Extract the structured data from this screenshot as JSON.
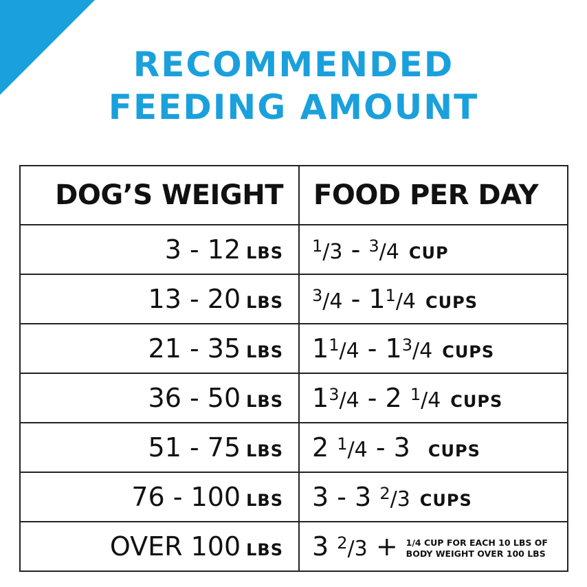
{
  "accent_color": "#1aa0dc",
  "title": {
    "line1": "RECOMMENDED",
    "line2": "FEEDING AMOUNT"
  },
  "headers": {
    "weight": "DOG’S WEIGHT",
    "food": "FOOD PER DAY"
  },
  "rows": [
    {
      "weight": "3 - 12",
      "weight_unit": "LBS",
      "food": [
        {
          "n": "1",
          "d": "3"
        },
        {
          "t": " - "
        },
        {
          "n": "3",
          "d": "4"
        }
      ],
      "food_unit": "CUP"
    },
    {
      "weight": "13 - 20",
      "weight_unit": "LBS",
      "food": [
        {
          "n": "3",
          "d": "4"
        },
        {
          "t": " - 1"
        },
        {
          "n": "1",
          "d": "4"
        }
      ],
      "food_unit": "CUPS"
    },
    {
      "weight": "21 - 35",
      "weight_unit": "LBS",
      "food": [
        {
          "t": "1"
        },
        {
          "n": "1",
          "d": "4"
        },
        {
          "t": " - 1"
        },
        {
          "n": "3",
          "d": "4"
        }
      ],
      "food_unit": "CUPS"
    },
    {
      "weight": "36 - 50",
      "weight_unit": "LBS",
      "food": [
        {
          "t": "1"
        },
        {
          "n": "3",
          "d": "4"
        },
        {
          "t": " - 2 "
        },
        {
          "n": "1",
          "d": "4"
        }
      ],
      "food_unit": "CUPS"
    },
    {
      "weight": "51 - 75",
      "weight_unit": "LBS",
      "food": [
        {
          "t": "2 "
        },
        {
          "n": "1",
          "d": "4"
        },
        {
          "t": " - 3 "
        }
      ],
      "food_unit": "CUPS"
    },
    {
      "weight": "76 - 100",
      "weight_unit": "LBS",
      "food": [
        {
          "t": "3 - 3 "
        },
        {
          "n": "2",
          "d": "3"
        }
      ],
      "food_unit": "CUPS"
    },
    {
      "weight": "OVER 100",
      "weight_unit": "LBS",
      "food": [
        {
          "t": "3 "
        },
        {
          "n": "2",
          "d": "3"
        },
        {
          "t": " +"
        }
      ],
      "food_unit": "",
      "note": [
        "1/4 CUP FOR EACH 10 LBS OF",
        "BODY WEIGHT OVER 100 LBS"
      ]
    }
  ]
}
